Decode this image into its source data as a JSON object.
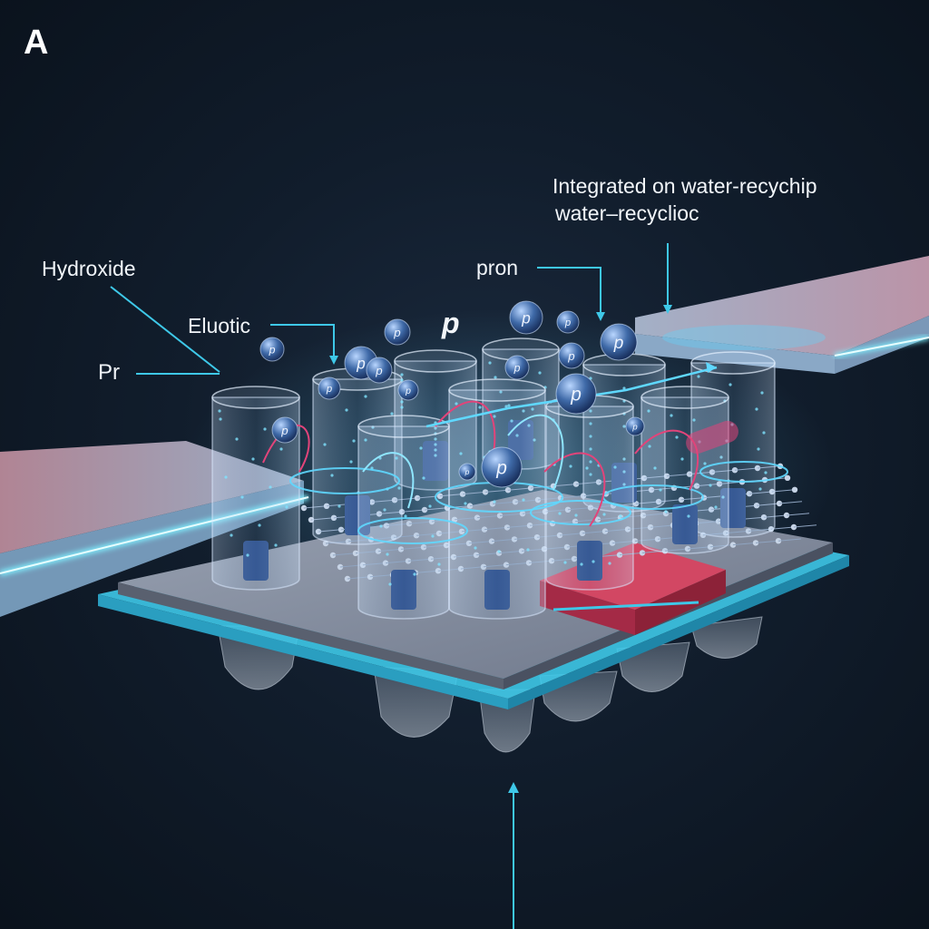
{
  "panel": {
    "letter": "A"
  },
  "labels": {
    "hydroxide": "Hydroxide",
    "pr": "Pr",
    "eluotic": "Eluotic",
    "p_top": "p",
    "pron": "pron",
    "integrated_line1": "Integrated on water-recychip",
    "integrated_line2": "water–recyclioc"
  },
  "particle_glyph": "p",
  "colors": {
    "background": "#0b1420",
    "accent": "#3ec8e8",
    "glow": "#5fd8ff",
    "magenta": "#e2447a",
    "chip_red": "#c0304a"
  }
}
